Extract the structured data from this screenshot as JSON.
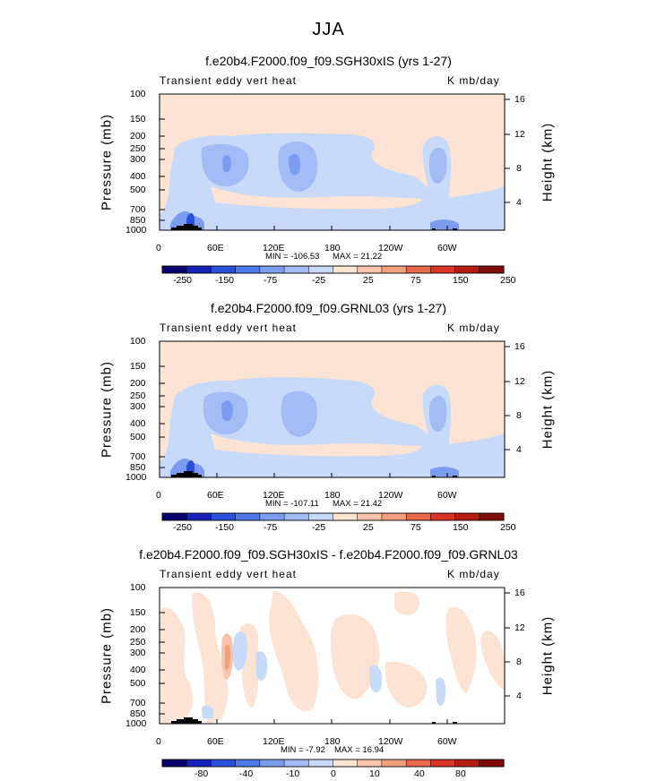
{
  "page": {
    "title": "JJA"
  },
  "colors": {
    "scale": [
      "#08006e",
      "#1522b7",
      "#2b50d9",
      "#4f79e8",
      "#7c9cf0",
      "#a3bcf5",
      "#c8dafa",
      "#fde3d3",
      "#f9c4a9",
      "#f3a07e",
      "#e8684a",
      "#d93424",
      "#b51d13",
      "#7f0c07"
    ],
    "background": "#ffffff"
  },
  "chart_data": [
    {
      "type": "heatmap",
      "title": "f.e20b4.F2000.f09_f09.SGH30xIS (yrs 1-27)",
      "variable": "Transient eddy vert heat",
      "units": "K mb/day",
      "xlabel": "",
      "ylabel": "Pressure (mb)",
      "ylabel_right": "Height (km)",
      "x_ticks": [
        "0",
        "60E",
        "120E",
        "180",
        "120W",
        "60W"
      ],
      "y_ticks": [
        "100",
        "150",
        "200",
        "250",
        "300",
        "400",
        "500",
        "700",
        "850",
        "1000"
      ],
      "y_ticks_right": [
        "16",
        "12",
        "8",
        "4"
      ],
      "xlim": [
        0,
        360
      ],
      "ylim": [
        1000,
        100
      ],
      "colorbar_labels": [
        "-250",
        "-150",
        "-75",
        "-25",
        "25",
        "75",
        "150",
        "250"
      ],
      "min_text": "MIN = -106.53",
      "max_text": "MAX = 21.22",
      "min": -106.53,
      "max": 21.22
    },
    {
      "type": "heatmap",
      "title": "f.e20b4.F2000.f09_f09.GRNL03 (yrs 1-27)",
      "variable": "Transient eddy vert heat",
      "units": "K mb/day",
      "xlabel": "",
      "ylabel": "Pressure (mb)",
      "ylabel_right": "Height (km)",
      "x_ticks": [
        "0",
        "60E",
        "120E",
        "180",
        "120W",
        "60W"
      ],
      "y_ticks": [
        "100",
        "150",
        "200",
        "250",
        "300",
        "400",
        "500",
        "700",
        "850",
        "1000"
      ],
      "y_ticks_right": [
        "16",
        "12",
        "8",
        "4"
      ],
      "xlim": [
        0,
        360
      ],
      "ylim": [
        1000,
        100
      ],
      "colorbar_labels": [
        "-250",
        "-150",
        "-75",
        "-25",
        "25",
        "75",
        "150",
        "250"
      ],
      "min_text": "MIN = -107.11",
      "max_text": "MAX = 21.42",
      "min": -107.11,
      "max": 21.42
    },
    {
      "type": "heatmap",
      "title": "f.e20b4.F2000.f09_f09.SGH30xIS - f.e20b4.F2000.f09_f09.GRNL03",
      "variable": "Transient eddy vert heat",
      "units": "K mb/day",
      "xlabel": "",
      "ylabel": "Pressure (mb)",
      "ylabel_right": "Height (km)",
      "x_ticks": [
        "0",
        "60E",
        "120E",
        "180",
        "120W",
        "60W"
      ],
      "y_ticks": [
        "100",
        "150",
        "200",
        "250",
        "300",
        "400",
        "500",
        "700",
        "850",
        "1000"
      ],
      "y_ticks_right": [
        "16",
        "12",
        "8",
        "4"
      ],
      "xlim": [
        0,
        360
      ],
      "ylim": [
        1000,
        100
      ],
      "colorbar_labels": [
        "-80",
        "-40",
        "-10",
        "0",
        "10",
        "40",
        "80"
      ],
      "min_text": "MIN = -7.92",
      "max_text": "MAX = 16.94",
      "min": -7.92,
      "max": 16.94
    }
  ]
}
